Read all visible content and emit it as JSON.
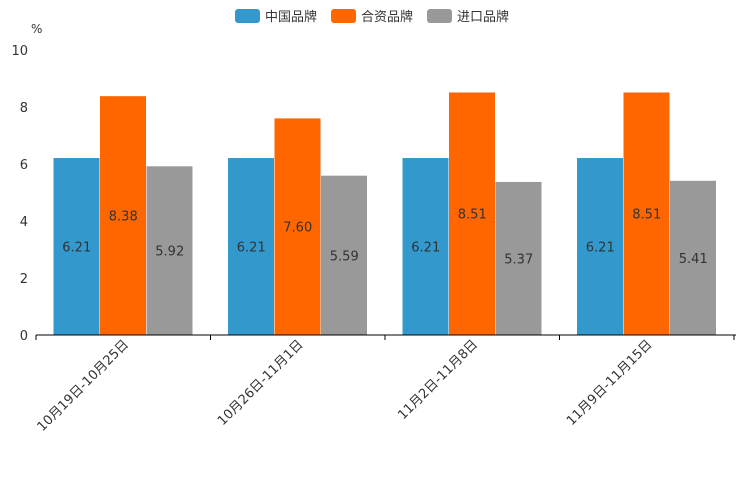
{
  "chart_data": {
    "type": "bar",
    "unit": "%",
    "categories": [
      "10月19日-10月25日",
      "10月26日-11月1日",
      "11月2日-11月8日",
      "11月9日-11月15日"
    ],
    "series": [
      {
        "name": "中国品牌",
        "color": "#3399cc",
        "values": [
          6.21,
          6.21,
          6.21,
          6.21
        ],
        "labels": [
          "6.21",
          "6.21",
          "6.21",
          "6.21"
        ]
      },
      {
        "name": "合资品牌",
        "color": "#ff6600",
        "values": [
          8.38,
          7.6,
          8.51,
          8.51
        ],
        "labels": [
          "8.38",
          "7.60",
          "8.51",
          "8.51"
        ]
      },
      {
        "name": "进口品牌",
        "color": "#999999",
        "values": [
          5.92,
          5.59,
          5.37,
          5.41
        ],
        "labels": [
          "5.92",
          "5.59",
          "5.37",
          "5.41"
        ]
      }
    ],
    "yticks": [
      "0",
      "2",
      "4",
      "6",
      "8",
      "10"
    ],
    "ylim": [
      0,
      10
    ],
    "legend_position": "top-center",
    "grid": false
  }
}
